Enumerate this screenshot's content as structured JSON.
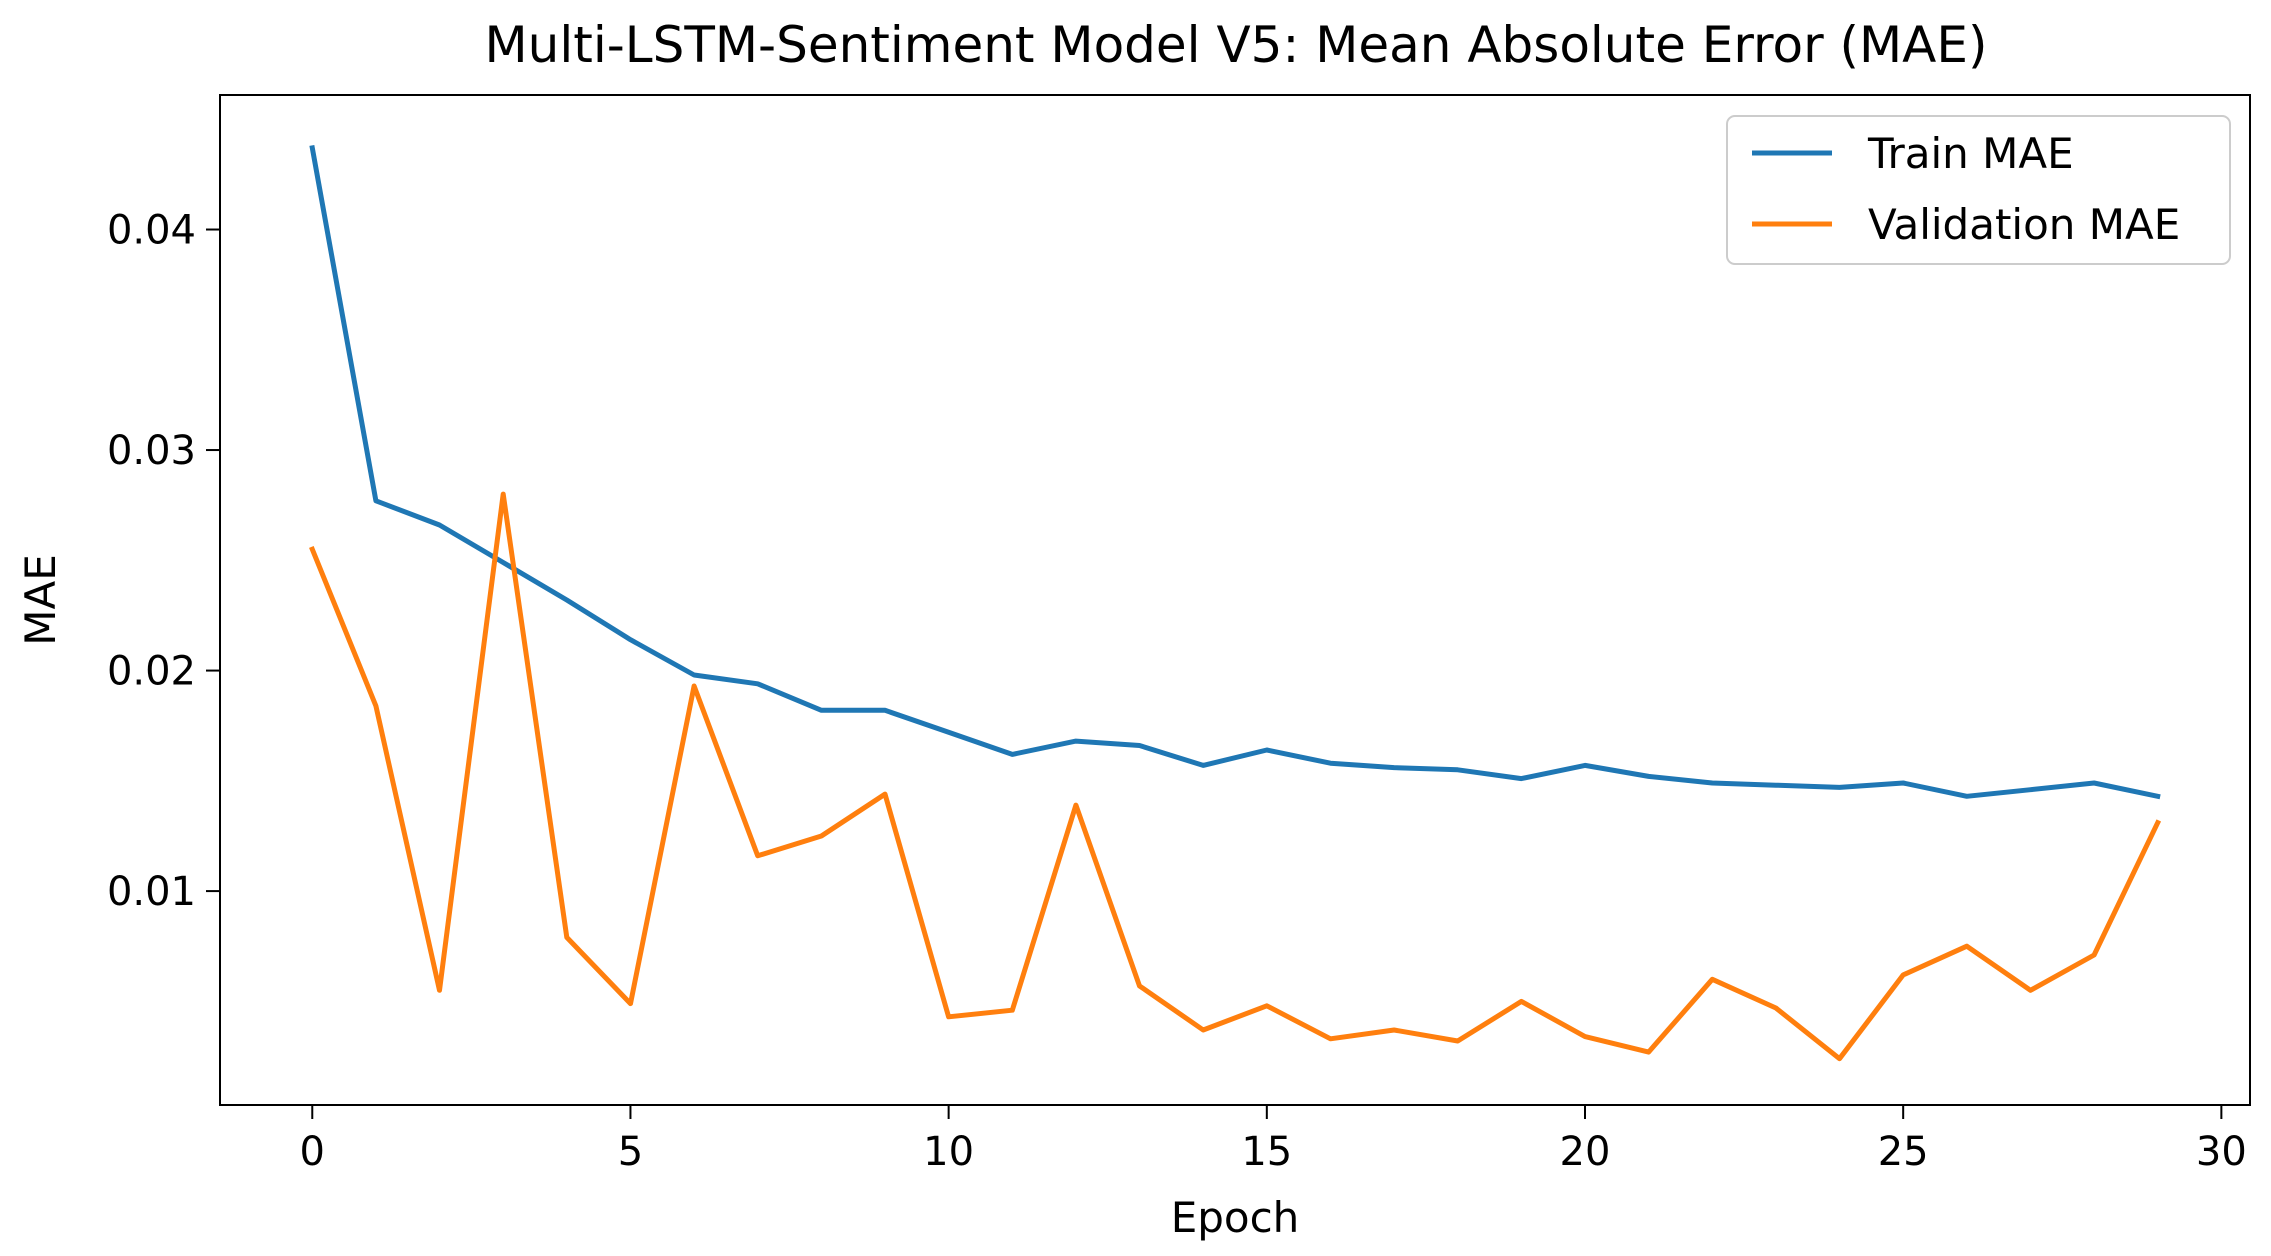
{
  "chart_data": {
    "type": "line",
    "title": "Multi-LSTM-Sentiment Model V5: Mean Absolute Error (MAE)",
    "xlabel": "Epoch",
    "ylabel": "MAE",
    "xlim": [
      -1.45,
      30.45
    ],
    "ylim": [
      0.0003,
      0.0461
    ],
    "x_ticks": [
      0,
      5,
      10,
      15,
      20,
      25,
      30
    ],
    "x_tick_labels": [
      "0",
      "5",
      "10",
      "15",
      "20",
      "25",
      "30"
    ],
    "y_ticks": [
      0.01,
      0.02,
      0.03,
      0.04
    ],
    "y_tick_labels": [
      "0.01",
      "0.02",
      "0.03",
      "0.04"
    ],
    "grid": false,
    "legend_position": "top-right",
    "x": [
      0,
      1,
      2,
      3,
      4,
      5,
      6,
      7,
      8,
      9,
      10,
      11,
      12,
      13,
      14,
      15,
      16,
      17,
      18,
      19,
      20,
      21,
      22,
      23,
      24,
      25,
      26,
      27,
      28,
      29
    ],
    "series": [
      {
        "name": "Train MAE",
        "color": "#1f77b4",
        "values": [
          0.0437,
          0.0277,
          0.0266,
          0.0249,
          0.0232,
          0.0214,
          0.0198,
          0.0194,
          0.0182,
          0.0182,
          0.0172,
          0.0162,
          0.0168,
          0.0166,
          0.0157,
          0.0164,
          0.0158,
          0.0156,
          0.0155,
          0.0151,
          0.0157,
          0.0152,
          0.0149,
          0.0148,
          0.0147,
          0.0149,
          0.0143,
          0.0146,
          0.0149,
          0.0143
        ]
      },
      {
        "name": "Validation MAE",
        "color": "#ff7f0e",
        "values": [
          0.0255,
          0.0184,
          0.0055,
          0.028,
          0.0079,
          0.0049,
          0.0193,
          0.0116,
          0.0125,
          0.0144,
          0.0043,
          0.0046,
          0.0139,
          0.0057,
          0.0037,
          0.0048,
          0.0033,
          0.0037,
          0.0032,
          0.005,
          0.0034,
          0.0027,
          0.006,
          0.0047,
          0.0024,
          0.0062,
          0.0075,
          0.0055,
          0.0071,
          0.0131
        ]
      }
    ]
  }
}
